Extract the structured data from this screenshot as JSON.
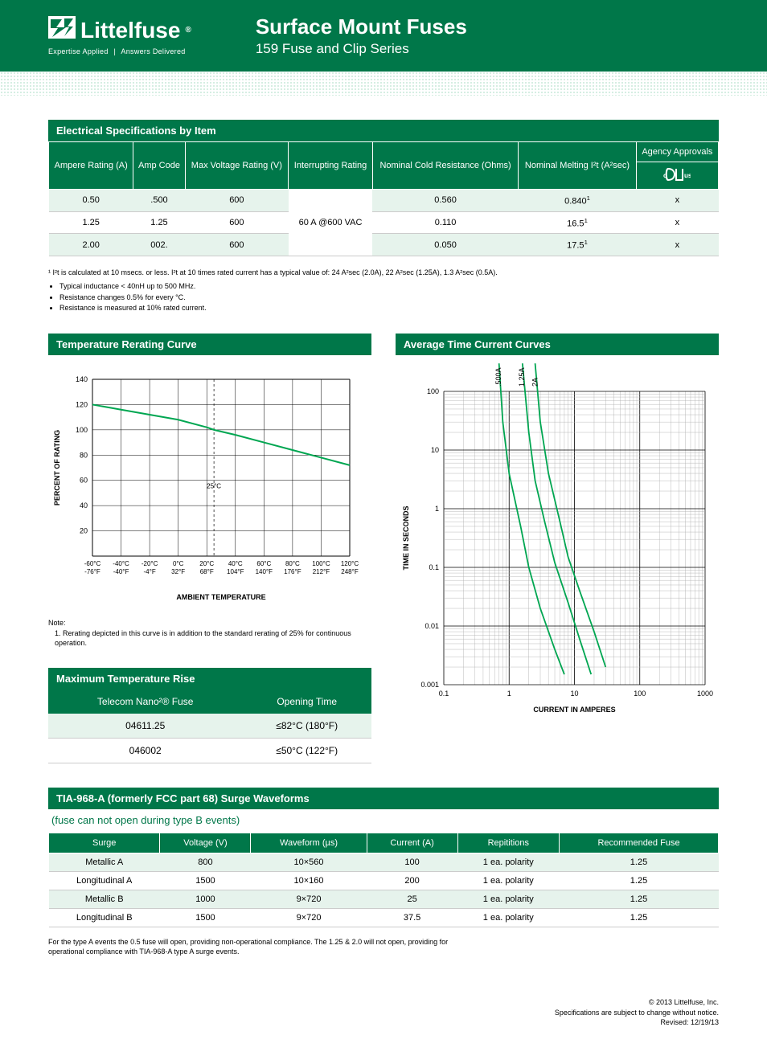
{
  "header": {
    "brand": "Littelfuse",
    "tagline_left": "Expertise Applied",
    "tagline_right": "Answers Delivered",
    "title": "Surface Mount Fuses",
    "subtitle": "159 Fuse and Clip Series"
  },
  "spec_table": {
    "title": "Electrical Specifications by Item",
    "headers": [
      "Ampere Rating (A)",
      "Amp Code",
      "Max Voltage Rating (V)",
      "Interrupting Rating",
      "Nominal Cold Resistance (Ohms)",
      "Nominal Melting I²t (A²sec)",
      "Agency Approvals"
    ],
    "agency_label": "Agency Approvals",
    "rows": [
      {
        "amp": "0.50",
        "code": ".500",
        "volt": "600",
        "cold": "0.560",
        "melt": "0.840",
        "melt_sup": "1",
        "approval": "x"
      },
      {
        "amp": "1.25",
        "code": "1.25",
        "volt": "600",
        "cold": "0.110",
        "melt": "16.5",
        "melt_sup": "1",
        "approval": "x"
      },
      {
        "amp": "2.00",
        "code": "002.",
        "volt": "600",
        "cold": "0.050",
        "melt": "17.5",
        "melt_sup": "1",
        "approval": "x"
      }
    ],
    "interrupt": "60 A @600 VAC"
  },
  "notes": {
    "n1": "¹ I²t is calculated at 10 msecs. or less. I²t at 10 times rated current has a typical value of: 24 A²sec (2.0A), 22 A²sec (1.25A), 1.3 A²sec (0.5A).",
    "b1": "Typical inductance < 40nH up to 500 MHz.",
    "b2": "Resistance changes 0.5% for every °C.",
    "b3": "Resistance is measured at 10% rated current."
  },
  "rerating": {
    "title": "Temperature Rerating Curve",
    "ylabel": "PERCENT OF RATING",
    "xlabel": "AMBIENT TEMPERATURE",
    "yticks": [
      20,
      40,
      60,
      80,
      100,
      120,
      140
    ],
    "xticks": [
      {
        "c": "-60°C",
        "f": "-76°F"
      },
      {
        "c": "-40°C",
        "f": "-40°F"
      },
      {
        "c": "-20°C",
        "f": "-4°F"
      },
      {
        "c": "0°C",
        "f": "32°F"
      },
      {
        "c": "20°C",
        "f": "68°F"
      },
      {
        "c": "40°C",
        "f": "104°F"
      },
      {
        "c": "60°C",
        "f": "140°F"
      },
      {
        "c": "80°C",
        "f": "176°F"
      },
      {
        "c": "100°C",
        "f": "212°F"
      },
      {
        "c": "120°C",
        "f": "248°F"
      }
    ],
    "marker_label": "25°C",
    "line_color": "#00a651",
    "grid_color": "#000000",
    "line_data": [
      {
        "x": -60,
        "y": 120
      },
      {
        "x": -40,
        "y": 116
      },
      {
        "x": -20,
        "y": 112
      },
      {
        "x": 0,
        "y": 108
      },
      {
        "x": 20,
        "y": 102
      },
      {
        "x": 25,
        "y": 100
      },
      {
        "x": 40,
        "y": 96
      },
      {
        "x": 60,
        "y": 90
      },
      {
        "x": 80,
        "y": 84
      },
      {
        "x": 100,
        "y": 78
      },
      {
        "x": 120,
        "y": 72
      }
    ],
    "note_title": "Note:",
    "note_body": "1. Rerating depicted in this curve is in addition to the standard rerating of 25% for continuous operation."
  },
  "tcc": {
    "title": "Average Time Current Curves",
    "ylabel": "TIME IN SECONDS",
    "xlabel": "CURRENT IN AMPERES",
    "yticks": [
      "0.001",
      "0.01",
      "0.1",
      "1",
      "10",
      "100"
    ],
    "xticks": [
      "0.1",
      "1",
      "10",
      "100",
      "1000"
    ],
    "series_labels": [
      ".500A",
      "1.25A",
      "2A"
    ],
    "line_color": "#00a651",
    "grid_color": "#888888",
    "series": [
      {
        "name": ".500A",
        "points": [
          [
            0.7,
            300
          ],
          [
            0.8,
            30
          ],
          [
            1,
            4
          ],
          [
            1.5,
            0.5
          ],
          [
            2,
            0.1
          ],
          [
            3,
            0.02
          ],
          [
            5,
            0.004
          ],
          [
            7,
            0.0015
          ]
        ]
      },
      {
        "name": "1.25A",
        "points": [
          [
            1.6,
            300
          ],
          [
            2,
            20
          ],
          [
            2.5,
            3
          ],
          [
            3.5,
            0.6
          ],
          [
            5,
            0.12
          ],
          [
            8,
            0.025
          ],
          [
            12,
            0.006
          ],
          [
            18,
            0.0015
          ]
        ]
      },
      {
        "name": "2A",
        "points": [
          [
            2.5,
            300
          ],
          [
            3,
            30
          ],
          [
            4,
            4
          ],
          [
            6,
            0.6
          ],
          [
            8,
            0.15
          ],
          [
            12,
            0.04
          ],
          [
            20,
            0.008
          ],
          [
            30,
            0.002
          ]
        ]
      }
    ]
  },
  "maxtemp": {
    "title": "Maximum Temperature Rise",
    "headers": [
      "Telecom Nano²® Fuse",
      "Opening Time"
    ],
    "rows": [
      {
        "fuse": "04611.25",
        "time": "≤82°C (180°F)"
      },
      {
        "fuse": "046002",
        "time": "≤50°C (122°F)"
      }
    ]
  },
  "surge": {
    "title": "TIA-968-A (formerly FCC part 68) Surge Waveforms",
    "subtitle": "(fuse can not open during type B events)",
    "headers": [
      "Surge",
      "Voltage (V)",
      "Waveform (µs)",
      "Current (A)",
      "Repititions",
      "Recommended Fuse"
    ],
    "rows": [
      {
        "s": "Metallic A",
        "v": "800",
        "w": "10×560",
        "c": "100",
        "r": "1 ea. polarity",
        "f": "1.25"
      },
      {
        "s": "Longitudinal A",
        "v": "1500",
        "w": "10×160",
        "c": "200",
        "r": "1 ea. polarity",
        "f": "1.25"
      },
      {
        "s": "Metallic B",
        "v": "1000",
        "w": "9×720",
        "c": "25",
        "r": "1 ea. polarity",
        "f": "1.25"
      },
      {
        "s": "Longitudinal B",
        "v": "1500",
        "w": "9×720",
        "c": "37.5",
        "r": "1 ea. polarity",
        "f": "1.25"
      }
    ],
    "note": "For the type A events the 0.5 fuse will open, providing non-operational compliance. The 1.25 & 2.0 will not open, providing for operational compliance with TIA-968-A type A surge events."
  },
  "footer": {
    "l1": "© 2013 Littelfuse, Inc.",
    "l2": "Specifications are subject to change without notice.",
    "l3": "Revised: 12/19/13"
  }
}
